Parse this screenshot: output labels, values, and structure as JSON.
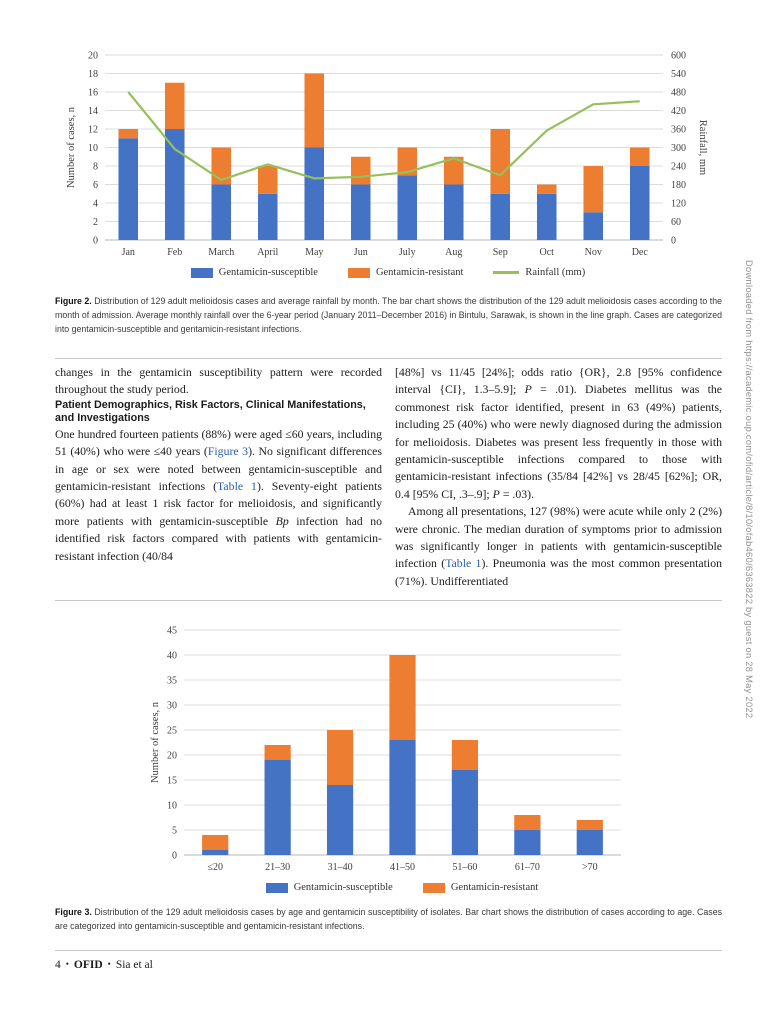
{
  "figure2": {
    "caption_label": "Figure 2.",
    "caption_text": "Distribution of 129 adult melioidosis cases and average rainfall by month. The bar chart shows the distribution of the 129 adult melioidosis cases according to the month of admission. Average monthly rainfall over the 6-year period (January 2011–December 2016) in Bintulu, Sarawak, is shown in the line graph. Cases are categorized into gentamicin-susceptible and gentamicin-resistant infections."
  },
  "figure3": {
    "caption_label": "Figure 3.",
    "caption_text": "Distribution of the 129 adult melioidosis cases by age and gentamicin susceptibility of isolates. Bar chart shows the distribution of cases according to age. Cases are categorized into gentamicin-susceptible and gentamicin-resistant infections."
  },
  "body": {
    "left": {
      "para1": "changes in the gentamicin susceptibility pattern were recorded throughout the study period.",
      "heading": "Patient Demographics, Risk Factors, Clinical Manifestations, and Investigations",
      "para2": {
        "s0": "One hundred fourteen patients (88%) were aged ≤60 years, including 51 (40%) who were ≤40 years (",
        "link_figure3": "Figure 3",
        "s1": "). No significant differences in age or sex were noted between gentamicin-susceptible and gentamicin-resistant infections (",
        "link_table1": "Table 1",
        "s2": "). Seventy-eight patients (60%) had at least 1 risk factor for melioidosis, and significantly more patients with gentamicin-susceptible ",
        "italic_bp": "Bp",
        "s3": " infection had no identified risk factors compared with patients with gentamicin-resistant infection (40/84"
      }
    },
    "right": {
      "para1": {
        "s0": "[48%] vs 11/45 [24%]; odds ratio {OR}, 2.8 [95% confidence interval {CI}, 1.3–5.9]; ",
        "italic_p1": "P",
        "s1": " = .01). Diabetes mellitus was the commonest risk factor identified, present in 63 (49%) patients, including 25 (40%) who were newly diagnosed during the admission for melioidosis. Diabetes was present less frequently in those with gentamicin-susceptible infections compared to those with gentamicin-resistant infections (35/84 [42%] vs 28/45 [62%]; OR, 0.4 [95% CI, .3–.9]; ",
        "italic_p2": "P",
        "s2": " = .03)."
      },
      "para2": {
        "s0": "Among all presentations, 127 (98%) were acute while only 2 (2%) were chronic. The median duration of symptoms prior to admission was significantly longer in patients with gentamicin-susceptible infection (",
        "link_table1": "Table 1",
        "s1": "). Pneumonia was the most common presentation (71%). Undifferentiated"
      }
    }
  },
  "footer": {
    "page_number": "4",
    "separator": "•",
    "journal": "OFID",
    "authors": "Sia et al"
  },
  "watermark": "Downloaded from https://academic.oup.com/ofid/article/8/10/ofab460/6363822 by guest on 28 May 2022",
  "chart_data": [
    {
      "type": "bar",
      "stacked": true,
      "title": "",
      "categories": [
        "Jan",
        "Feb",
        "March",
        "April",
        "May",
        "Jun",
        "July",
        "Aug",
        "Sep",
        "Oct",
        "Nov",
        "Dec"
      ],
      "series": [
        {
          "name": "Gentamicin-susceptible",
          "type": "bar",
          "color": "#4472C4",
          "values": [
            11,
            12,
            6,
            5,
            10,
            6,
            7,
            6,
            5,
            5,
            3,
            8
          ]
        },
        {
          "name": "Gentamicin-resistant",
          "type": "bar",
          "color": "#ED7D31",
          "values": [
            1,
            5,
            4,
            3,
            8,
            3,
            3,
            3,
            7,
            1,
            5,
            2
          ]
        },
        {
          "name": "Rainfall (mm)",
          "type": "line",
          "color": "#97C05C",
          "axis": "right",
          "values": [
            480,
            295,
            195,
            245,
            200,
            205,
            220,
            265,
            210,
            355,
            440,
            450
          ]
        }
      ],
      "left_axis": {
        "label": "Number of cases, n",
        "min": 0,
        "max": 20,
        "step": 2
      },
      "right_axis": {
        "label": "Rainfall, mm",
        "min": 0,
        "max": 600,
        "step": 100
      },
      "grid": true,
      "legend_position": "bottom"
    },
    {
      "type": "bar",
      "stacked": true,
      "title": "",
      "categories": [
        "≤20",
        "21–30",
        "31–40",
        "41–50",
        "51–60",
        "61–70",
        ">70"
      ],
      "series": [
        {
          "name": "Gentamicin-susceptible",
          "type": "bar",
          "color": "#4472C4",
          "values": [
            1,
            19,
            14,
            23,
            17,
            5,
            5
          ]
        },
        {
          "name": "Gentamicin-resistant",
          "type": "bar",
          "color": "#ED7D31",
          "values": [
            3,
            3,
            11,
            17,
            6,
            3,
            2
          ]
        }
      ],
      "left_axis": {
        "label": "Number of cases, n",
        "min": 0,
        "max": 45,
        "step": 5
      },
      "grid": true,
      "legend_position": "bottom"
    }
  ]
}
